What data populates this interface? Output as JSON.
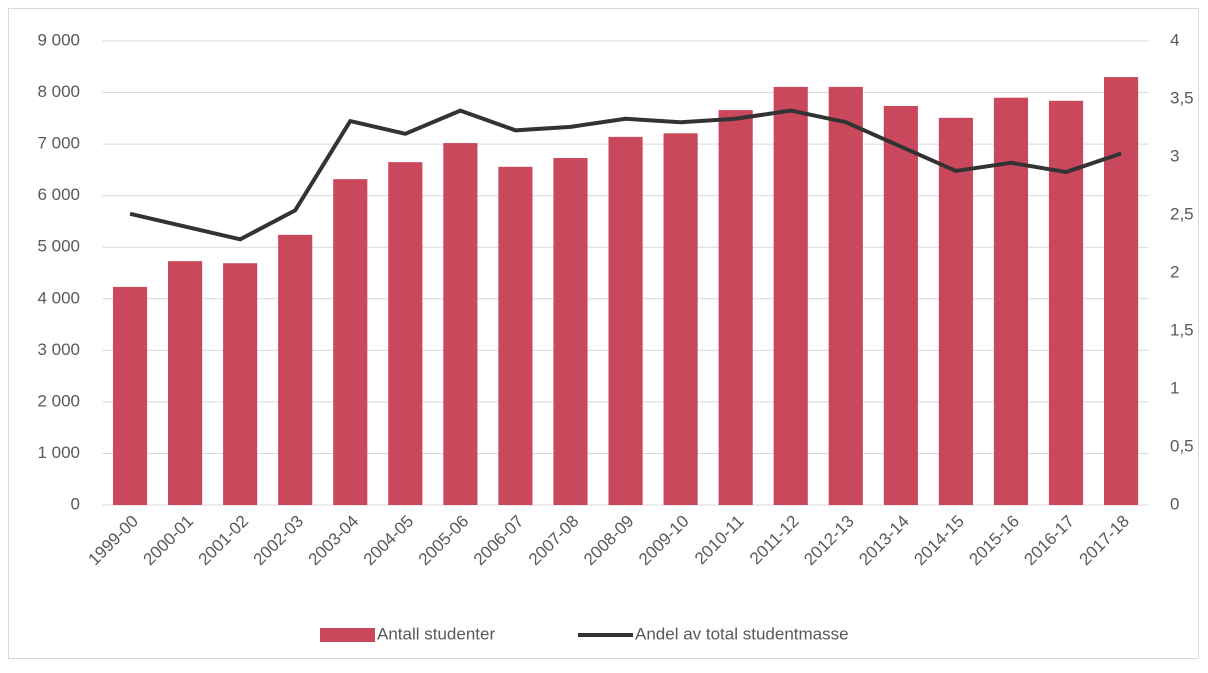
{
  "chart_data": {
    "type": "bar-line",
    "categories": [
      "1999-00",
      "2000-01",
      "2001-02",
      "2002-03",
      "2003-04",
      "2004-05",
      "2005-06",
      "2006-07",
      "2007-08",
      "2008-09",
      "2009-10",
      "2010-11",
      "2011-12",
      "2012-13",
      "2013-14",
      "2014-15",
      "2015-16",
      "2016-17",
      "2017-18"
    ],
    "series": [
      {
        "name": "Antall studenter",
        "type": "bar",
        "color": "#c9485b",
        "values": [
          4230,
          4730,
          4690,
          5240,
          6320,
          6650,
          7020,
          6560,
          6730,
          7140,
          7210,
          7660,
          8110,
          8110,
          7740,
          7510,
          7900,
          7840,
          8300
        ]
      },
      {
        "name": "Andel av total studentmasse",
        "type": "line",
        "color": "#333333",
        "axis": "y2",
        "values": [
          2.51,
          2.4,
          2.29,
          2.54,
          3.31,
          3.2,
          3.4,
          3.23,
          3.26,
          3.33,
          3.3,
          3.33,
          3.4,
          3.3,
          3.09,
          2.88,
          2.95,
          2.87,
          3.03
        ]
      }
    ],
    "ylim": [
      0,
      9000
    ],
    "yticks": [
      0,
      {
        "value": 1000,
        "label": "1 000"
      },
      {
        "value": 2000,
        "label": "2 000"
      },
      {
        "value": 3000,
        "label": "3 000"
      },
      {
        "value": 4000,
        "label": "4 000"
      },
      {
        "value": 5000,
        "label": "5 000"
      },
      {
        "value": 6000,
        "label": "6 000"
      },
      {
        "value": 7000,
        "label": "7 000"
      },
      {
        "value": 8000,
        "label": "8 000"
      },
      {
        "value": 9000,
        "label": "9 000"
      }
    ],
    "y2lim": [
      0,
      4
    ],
    "y2ticks": [
      0,
      {
        "value": 0.5,
        "label": "0,5"
      },
      1,
      {
        "value": 1.5,
        "label": "1,5"
      },
      2,
      {
        "value": 2.5,
        "label": "2,5"
      },
      3,
      {
        "value": 3.5,
        "label": "3,5"
      },
      4
    ],
    "grid": true,
    "legend": "bottom"
  }
}
